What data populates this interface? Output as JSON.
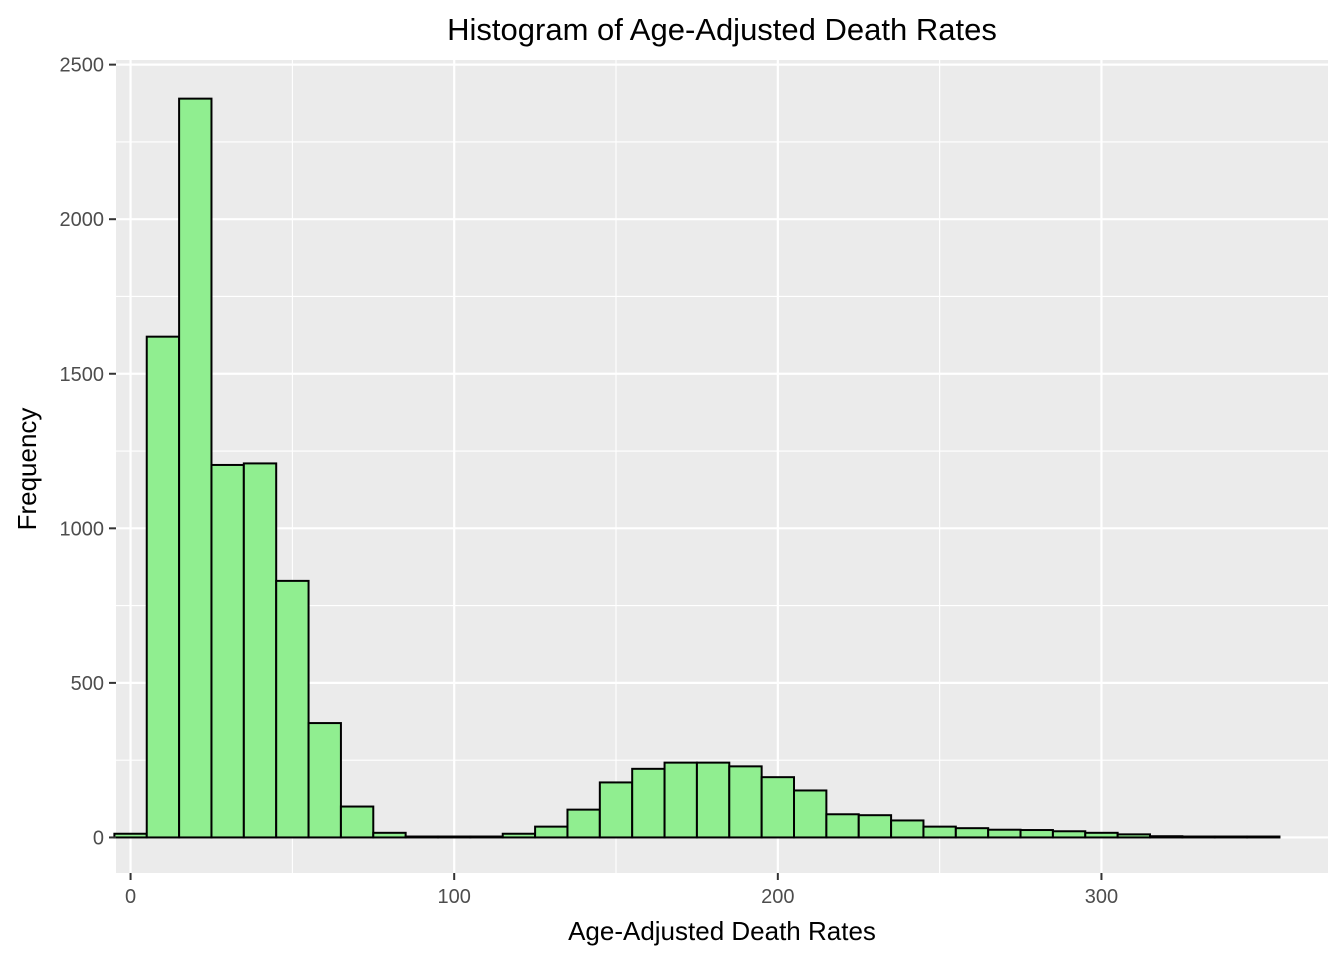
{
  "chart_data": {
    "type": "bar",
    "subtype": "histogram",
    "title": "Histogram of Age-Adjusted Death Rates",
    "xlabel": "Age-Adjusted Death Rates",
    "ylabel": "Frequency",
    "xlim": [
      -4.5,
      370
    ],
    "ylim": [
      -115,
      2515
    ],
    "x_ticks": [
      0,
      100,
      200,
      300
    ],
    "y_ticks": [
      0,
      500,
      1000,
      1500,
      2000,
      2500
    ],
    "grid": true,
    "legend": "none",
    "bin_width": 10,
    "bins": [
      {
        "x0": -5,
        "x1": 5,
        "count": 12
      },
      {
        "x0": 5,
        "x1": 15,
        "count": 1620
      },
      {
        "x0": 15,
        "x1": 25,
        "count": 2390
      },
      {
        "x0": 25,
        "x1": 35,
        "count": 1205
      },
      {
        "x0": 35,
        "x1": 45,
        "count": 1210
      },
      {
        "x0": 45,
        "x1": 55,
        "count": 830
      },
      {
        "x0": 55,
        "x1": 65,
        "count": 370
      },
      {
        "x0": 65,
        "x1": 75,
        "count": 100
      },
      {
        "x0": 75,
        "x1": 85,
        "count": 15
      },
      {
        "x0": 85,
        "x1": 95,
        "count": 3
      },
      {
        "x0": 95,
        "x1": 105,
        "count": 3
      },
      {
        "x0": 105,
        "x1": 115,
        "count": 3
      },
      {
        "x0": 115,
        "x1": 125,
        "count": 12
      },
      {
        "x0": 125,
        "x1": 135,
        "count": 35
      },
      {
        "x0": 135,
        "x1": 145,
        "count": 90
      },
      {
        "x0": 145,
        "x1": 155,
        "count": 178
      },
      {
        "x0": 155,
        "x1": 165,
        "count": 222
      },
      {
        "x0": 165,
        "x1": 175,
        "count": 242
      },
      {
        "x0": 175,
        "x1": 185,
        "count": 242
      },
      {
        "x0": 185,
        "x1": 195,
        "count": 230
      },
      {
        "x0": 195,
        "x1": 205,
        "count": 195
      },
      {
        "x0": 205,
        "x1": 215,
        "count": 152
      },
      {
        "x0": 215,
        "x1": 225,
        "count": 75
      },
      {
        "x0": 225,
        "x1": 235,
        "count": 72
      },
      {
        "x0": 235,
        "x1": 245,
        "count": 55
      },
      {
        "x0": 245,
        "x1": 255,
        "count": 35
      },
      {
        "x0": 255,
        "x1": 265,
        "count": 30
      },
      {
        "x0": 265,
        "x1": 275,
        "count": 25
      },
      {
        "x0": 275,
        "x1": 285,
        "count": 24
      },
      {
        "x0": 285,
        "x1": 295,
        "count": 20
      },
      {
        "x0": 295,
        "x1": 305,
        "count": 15
      },
      {
        "x0": 305,
        "x1": 315,
        "count": 10
      },
      {
        "x0": 315,
        "x1": 325,
        "count": 4
      },
      {
        "x0": 325,
        "x1": 335,
        "count": 3
      },
      {
        "x0": 335,
        "x1": 345,
        "count": 3
      },
      {
        "x0": 345,
        "x1": 355,
        "count": 3
      }
    ],
    "colors": {
      "bar_fill": "#90ee90",
      "bar_stroke": "#000000",
      "panel_background": "#ebebeb",
      "grid": "#ffffff"
    }
  }
}
